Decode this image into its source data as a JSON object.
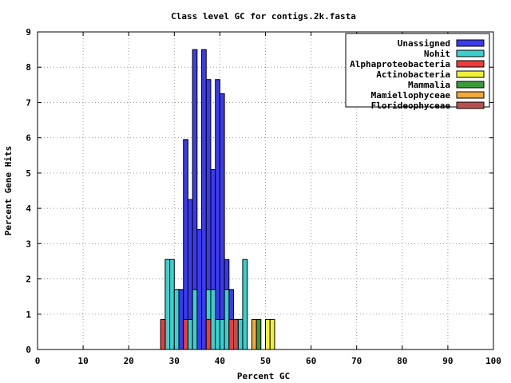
{
  "chart_data": {
    "type": "bar",
    "title": "Class level GC for contigs.2k.fasta",
    "xlabel": "Percent GC",
    "ylabel": "Percent Gene Hits",
    "xlim": [
      0,
      100
    ],
    "ylim": [
      0,
      9
    ],
    "x_ticks": [
      "0",
      "10",
      "20",
      "30",
      "40",
      "50",
      "60",
      "70",
      "80",
      "90",
      "100"
    ],
    "y_ticks": [
      "0",
      "1",
      "2",
      "3",
      "4",
      "5",
      "6",
      "7",
      "8",
      "9"
    ],
    "grid": true,
    "legend_position": "top-right",
    "bin_width": 1,
    "series": [
      {
        "name": "Unassigned",
        "color": "#3b3bee",
        "points": [
          [
            31,
            1.7
          ],
          [
            32,
            5.95
          ],
          [
            33,
            4.25
          ],
          [
            34,
            8.5
          ],
          [
            35,
            3.4
          ],
          [
            36,
            8.5
          ],
          [
            37,
            7.65
          ],
          [
            38,
            5.1
          ],
          [
            39,
            7.65
          ],
          [
            40,
            7.25
          ],
          [
            41,
            2.55
          ],
          [
            42,
            1.7
          ],
          [
            43,
            0.85
          ],
          [
            44,
            0.85
          ]
        ]
      },
      {
        "name": "Nohit",
        "color": "#3bcfcf",
        "points": [
          [
            28,
            2.55
          ],
          [
            29,
            2.55
          ],
          [
            30,
            1.7
          ],
          [
            33,
            0.85
          ],
          [
            34,
            1.7
          ],
          [
            37,
            1.7
          ],
          [
            38,
            1.7
          ],
          [
            39,
            0.85
          ],
          [
            40,
            0.85
          ],
          [
            41,
            1.7
          ],
          [
            44,
            0.85
          ],
          [
            45,
            2.55
          ]
        ]
      },
      {
        "name": "Alphaproteobacteria",
        "color": "#ee3b3b",
        "points": [
          [
            27,
            0.85
          ],
          [
            32,
            0.85
          ],
          [
            37,
            0.85
          ],
          [
            42,
            0.85
          ]
        ]
      },
      {
        "name": "Actinobacteria",
        "color": "#f0f03b",
        "points": [
          [
            50,
            0.85
          ],
          [
            51,
            0.85
          ]
        ]
      },
      {
        "name": "Mammalia",
        "color": "#3b9b3b",
        "points": [
          [
            48,
            0.85
          ]
        ]
      },
      {
        "name": "Mamiellophyceae",
        "color": "#f0a83b",
        "points": [
          [
            47,
            0.85
          ]
        ]
      },
      {
        "name": "Florideophyceae",
        "color": "#b85050",
        "points": [
          [
            43,
            0.85
          ]
        ]
      }
    ]
  }
}
